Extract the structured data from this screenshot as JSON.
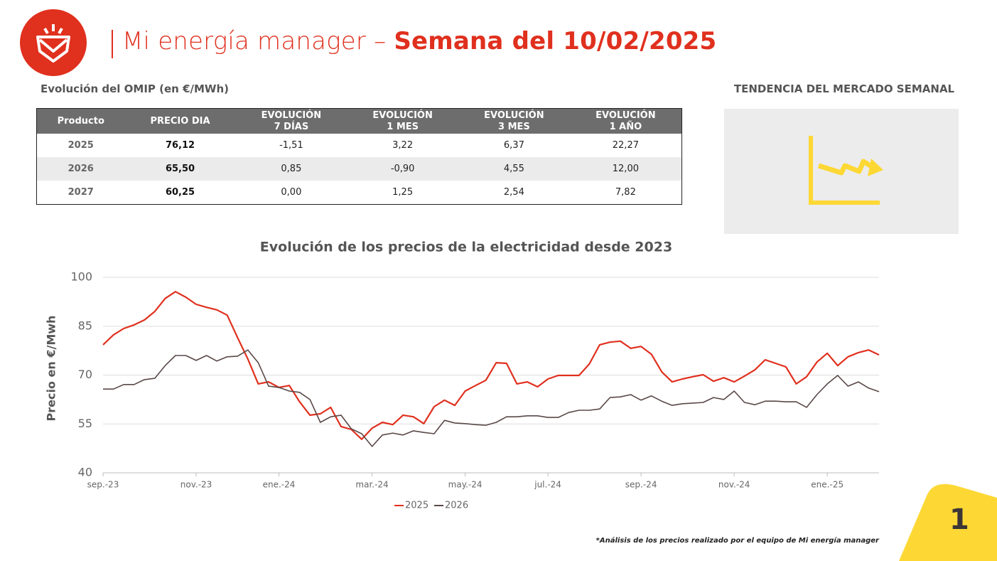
{
  "header": {
    "title": "Mi energía manager –",
    "title_bold": "Semana del 10/02/2025"
  },
  "table": {
    "title": "Evolución del OMIP (en €/MWh)",
    "columns": [
      "Producto",
      "PRECIO DIA",
      [
        "EVOLUCIÓN",
        "7 DÍAS"
      ],
      [
        "EVOLUCIÓN",
        "1 MES"
      ],
      [
        "EVOLUCIÓN",
        "3 MES"
      ],
      [
        "EVOLUCIÓN",
        "1 AÑO"
      ]
    ],
    "rows": [
      [
        "2025",
        "76,12",
        "-1,51",
        "3,22",
        "6,37",
        "22,27"
      ],
      [
        "2026",
        "65,50",
        "0,85",
        "-0,90",
        "4,55",
        "12,00"
      ],
      [
        "2027",
        "60,25",
        "0,00",
        "1,25",
        "2,54",
        "7,82"
      ]
    ]
  },
  "trend": {
    "title": "TENDENCIA DEL MERCADO SEMANAL"
  },
  "chart_data": {
    "type": "line",
    "title": "Evolución de los precios de la electricidad desde 2023",
    "y_label": "Precio en €/Mwh",
    "categories": [
      "sep.-23",
      null,
      null,
      null,
      null,
      null,
      null,
      null,
      null,
      "nov.-23",
      null,
      null,
      null,
      null,
      null,
      null,
      null,
      "ene.-24",
      null,
      null,
      null,
      null,
      null,
      null,
      null,
      null,
      "mar.-24",
      null,
      null,
      null,
      null,
      null,
      null,
      null,
      null,
      "may.-24",
      null,
      null,
      null,
      null,
      null,
      null,
      null,
      "jul.-24",
      null,
      null,
      null,
      null,
      null,
      null,
      null,
      null,
      "sep.-24",
      null,
      null,
      null,
      null,
      null,
      null,
      null,
      null,
      "nov.-24",
      null,
      null,
      null,
      null,
      null,
      null,
      null,
      null,
      "ene.-25",
      null,
      null,
      null,
      null,
      null
    ],
    "series": [
      {
        "name": "2025",
        "color": "#e0301e",
        "values": [
          79.3,
          82.3,
          84.3,
          85.4,
          86.9,
          89.5,
          93.5,
          95.6,
          93.9,
          91.7,
          90.8,
          90.0,
          88.4,
          81.5,
          74.9,
          67.3,
          67.9,
          66.2,
          66.8,
          61.8,
          57.7,
          58.1,
          60.1,
          54.2,
          53.3,
          50.3,
          53.7,
          55.5,
          54.8,
          57.7,
          57.2,
          55.1,
          60.3,
          62.3,
          60.7,
          65.1,
          66.8,
          68.4,
          73.8,
          73.6,
          67.3,
          67.9,
          66.4,
          68.8,
          69.9,
          69.9,
          69.9,
          73.4,
          79.3,
          80.1,
          80.4,
          78.2,
          78.8,
          76.4,
          71.0,
          67.9,
          68.8,
          69.5,
          70.1,
          68.1,
          69.2,
          67.9,
          69.7,
          71.6,
          74.7,
          73.6,
          72.5,
          67.3,
          69.5,
          74.0,
          76.7,
          72.9,
          75.6,
          76.9,
          77.7,
          76.2
        ]
      },
      {
        "name": "2026",
        "color": "#5a4848",
        "values": [
          65.7,
          65.7,
          67.1,
          67.1,
          68.6,
          69.0,
          72.9,
          76.0,
          76.0,
          74.5,
          76.0,
          74.3,
          75.6,
          75.8,
          77.7,
          73.8,
          66.6,
          66.2,
          65.1,
          64.7,
          62.5,
          55.5,
          57.2,
          57.7,
          53.5,
          52.0,
          48.1,
          51.6,
          52.2,
          51.6,
          52.9,
          52.4,
          52.0,
          56.1,
          55.3,
          55.1,
          54.8,
          54.6,
          55.5,
          57.2,
          57.2,
          57.5,
          57.5,
          57.0,
          57.0,
          58.5,
          59.2,
          59.2,
          59.6,
          63.1,
          63.3,
          64.0,
          62.3,
          63.6,
          62.0,
          60.7,
          61.2,
          61.4,
          61.6,
          63.1,
          62.5,
          65.1,
          61.6,
          60.9,
          62.0,
          62.0,
          61.8,
          61.8,
          60.1,
          64.0,
          67.3,
          69.9,
          66.6,
          67.9,
          66.0,
          64.9
        ]
      }
    ],
    "ylim": [
      40,
      100
    ],
    "yticks": [
      40,
      55,
      70,
      85,
      100
    ],
    "grid": true,
    "legend": "bottom"
  },
  "footnote": "*Análisis de los precios realizado por el equipo de Mi energía manager",
  "page_number": "1"
}
